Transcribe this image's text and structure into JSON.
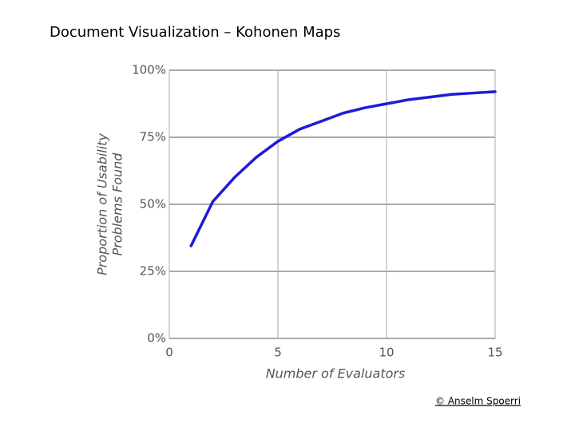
{
  "slide": {
    "title": "Document Visualization – Kohonen Maps",
    "footer": "© Anselm Spoerri"
  },
  "chart_data": {
    "type": "line",
    "x": [
      1,
      2,
      3,
      4,
      5,
      6,
      7,
      8,
      9,
      10,
      11,
      12,
      13,
      14,
      15
    ],
    "series": [
      {
        "name": "Proportion of Usability Problems Found",
        "color": "#1c1cd8",
        "values": [
          34.5,
          51,
          60,
          67.5,
          73.5,
          78,
          81,
          84,
          86,
          87.5,
          89,
          90,
          91,
          91.5,
          92
        ]
      }
    ],
    "xlabel": "Number of Evaluators",
    "ylabel": [
      "Proportion of Usability",
      "Problems Found"
    ],
    "xlim": [
      0,
      15
    ],
    "xticks": [
      0,
      5,
      10,
      15
    ],
    "ylim": [
      0,
      100
    ],
    "yticks": [
      {
        "value": 0,
        "label": "0%"
      },
      {
        "value": 25,
        "label": "25%"
      },
      {
        "value": 50,
        "label": "50%"
      },
      {
        "value": 75,
        "label": "75%"
      },
      {
        "value": 100,
        "label": "100%"
      }
    ],
    "grid": true
  }
}
